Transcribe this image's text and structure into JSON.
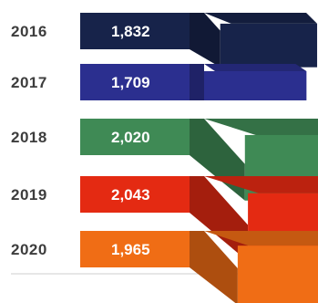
{
  "chart_data": {
    "type": "bar",
    "orientation": "horizontal",
    "style": "3d-ribbon",
    "categories": [
      "2016",
      "2017",
      "2018",
      "2019",
      "2020"
    ],
    "values": [
      1832,
      1709,
      2020,
      2043,
      1965
    ],
    "value_labels": [
      "1,832",
      "1,709",
      "2,020",
      "2,043",
      "1,965"
    ],
    "colors": [
      "#17234a",
      "#2b2f8f",
      "#3f8a55",
      "#e42a12",
      "#f06d15"
    ],
    "title": "",
    "xlabel": "",
    "ylabel": "",
    "grid": false,
    "legend": "none"
  }
}
